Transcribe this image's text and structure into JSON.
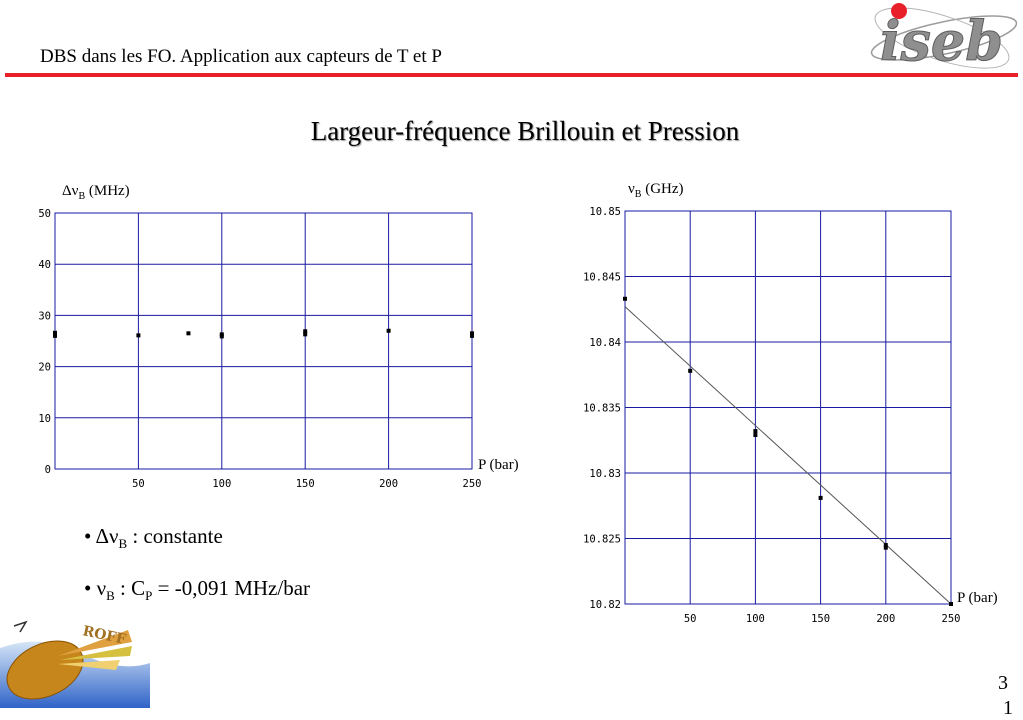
{
  "header": {
    "title": "DBS dans les FO. Application aux capteurs de T et P",
    "logo_text": "iseb",
    "accent_color": "#e8202a"
  },
  "slide": {
    "title": "Largeur-fréquence Brillouin et Pression",
    "page_number": "3",
    "page_number_cut": "1"
  },
  "bullets": [
    {
      "symbol": "Δν",
      "subscript": "B",
      "text": " : constante"
    },
    {
      "symbol": "ν",
      "subscript": "B",
      "text": " : C",
      "sub2": "P",
      "text2": " = -0,091 MHz/bar"
    }
  ],
  "chart_data": [
    {
      "type": "scatter",
      "ylabel": {
        "symbol": "Δν",
        "subscript": "B",
        "unit": " (MHz)"
      },
      "xlabel": "P (bar)",
      "xlim": [
        0,
        250
      ],
      "ylim": [
        0,
        50
      ],
      "x_ticks": [
        50,
        100,
        150,
        200,
        250
      ],
      "y_ticks": [
        0,
        10,
        20,
        30,
        40,
        50
      ],
      "grid": true,
      "grid_color": "#1a1aa0",
      "points": [
        {
          "x": 0,
          "y": 26.0
        },
        {
          "x": 0,
          "y": 26.6
        },
        {
          "x": 50,
          "y": 26.1
        },
        {
          "x": 80,
          "y": 26.5
        },
        {
          "x": 100,
          "y": 25.9
        },
        {
          "x": 100,
          "y": 26.3
        },
        {
          "x": 150,
          "y": 26.3
        },
        {
          "x": 150,
          "y": 26.9
        },
        {
          "x": 200,
          "y": 27.0
        },
        {
          "x": 250,
          "y": 26.0
        },
        {
          "x": 250,
          "y": 26.5
        }
      ]
    },
    {
      "type": "scatter",
      "ylabel": {
        "symbol": "ν",
        "subscript": "B",
        "unit": " (GHz)"
      },
      "xlabel": "P (bar)",
      "xlim": [
        0,
        250
      ],
      "ylim": [
        10.82,
        10.85
      ],
      "x_ticks": [
        50,
        100,
        150,
        200,
        250
      ],
      "y_ticks": [
        10.82,
        10.825,
        10.83,
        10.835,
        10.84,
        10.845,
        10.85
      ],
      "y_tick_labels": [
        "10.82",
        "10.825",
        "10.83",
        "10.835",
        "10.84",
        "10.845",
        "10.85"
      ],
      "grid": true,
      "grid_color": "#1a1aa0",
      "points": [
        {
          "x": 0,
          "y": 10.8433
        },
        {
          "x": 50,
          "y": 10.8378
        },
        {
          "x": 100,
          "y": 10.8332
        },
        {
          "x": 100,
          "y": 10.8329
        },
        {
          "x": 150,
          "y": 10.8281
        },
        {
          "x": 200,
          "y": 10.8245
        },
        {
          "x": 200,
          "y": 10.8243
        },
        {
          "x": 250,
          "y": 10.82
        }
      ],
      "fit_line": {
        "x": [
          0,
          250
        ],
        "y": [
          10.8427,
          10.82
        ]
      }
    }
  ]
}
